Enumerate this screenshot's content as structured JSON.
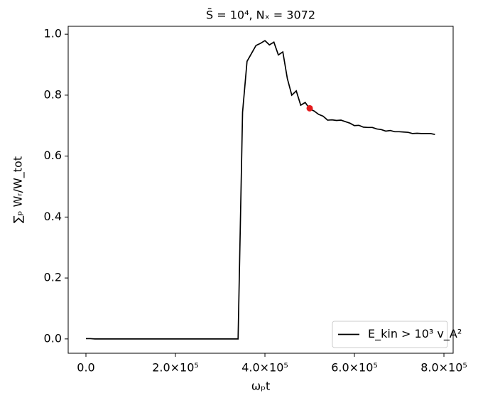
{
  "chart_data": {
    "type": "line",
    "title": "S̄ = 10⁴, Nₓ = 3072",
    "xlabel": "ωₚt",
    "ylabel": "∑ₚ Wᵣ/W_tot",
    "x": [
      0,
      10000,
      20000,
      30000,
      40000,
      50000,
      60000,
      70000,
      80000,
      90000,
      100000,
      110000,
      120000,
      130000,
      140000,
      150000,
      160000,
      170000,
      180000,
      190000,
      200000,
      210000,
      220000,
      230000,
      240000,
      250000,
      260000,
      270000,
      280000,
      290000,
      300000,
      310000,
      320000,
      330000,
      340000,
      350000,
      360000,
      370000,
      380000,
      390000,
      400000,
      410000,
      420000,
      430000,
      440000,
      450000,
      460000,
      470000,
      480000,
      490000,
      500000,
      510000,
      520000,
      530000,
      540000,
      550000,
      560000,
      570000,
      580000,
      590000,
      600000,
      610000,
      620000,
      630000,
      640000,
      650000,
      660000,
      670000,
      680000,
      690000,
      700000,
      710000,
      720000,
      730000,
      740000,
      750000,
      760000,
      770000,
      780000
    ],
    "series": [
      {
        "name": "E_kin > 10³ v_A²",
        "color": "#000000",
        "values": [
          0.001,
          0.001,
          0.0,
          0.0,
          0.0,
          0.0,
          0.0,
          0.0,
          0.0,
          0.0,
          0.0,
          0.0,
          0.0,
          0.0,
          0.0,
          0.0,
          0.0,
          0.0,
          0.0,
          0.0,
          0.0,
          0.0,
          0.0,
          0.0,
          0.0,
          0.0,
          0.0,
          0.0,
          0.0,
          0.0,
          0.0,
          0.0,
          0.0,
          0.0,
          0.0,
          0.744,
          0.911,
          0.937,
          0.963,
          0.97,
          0.979,
          0.965,
          0.974,
          0.932,
          0.942,
          0.855,
          0.8,
          0.814,
          0.767,
          0.776,
          0.755,
          0.748,
          0.737,
          0.731,
          0.718,
          0.719,
          0.717,
          0.718,
          0.713,
          0.708,
          0.7,
          0.701,
          0.695,
          0.694,
          0.694,
          0.689,
          0.687,
          0.682,
          0.684,
          0.68,
          0.68,
          0.679,
          0.678,
          0.674,
          0.675,
          0.674,
          0.674,
          0.674,
          0.671
        ]
      }
    ],
    "marker": {
      "x": 500000,
      "y": 0.757,
      "color": "#e41a1c"
    },
    "xlim": [
      -39700,
      820600
    ],
    "ylim": [
      -0.047,
      1.026
    ],
    "xticks": [
      {
        "value": 0,
        "label": "0.0"
      },
      {
        "value": 200000,
        "label": "2.0×10⁵"
      },
      {
        "value": 400000,
        "label": "4.0×10⁵"
      },
      {
        "value": 600000,
        "label": "6.0×10⁵"
      },
      {
        "value": 800000,
        "label": "8.0×10⁵"
      }
    ],
    "yticks": [
      {
        "value": 0,
        "label": "0.0"
      },
      0.2,
      0.4,
      0.6,
      0.8,
      {
        "value": 1,
        "label": "1.0"
      }
    ],
    "legend": "lower right"
  }
}
